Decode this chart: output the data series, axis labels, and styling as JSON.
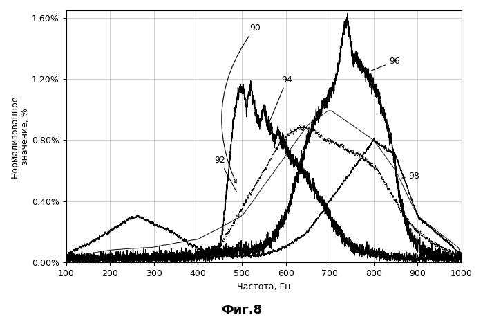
{
  "title": "",
  "xlabel": "Частота, Гц",
  "ylabel": "Нормализованное\nзначение, %",
  "fig_label": "Фиг.8",
  "xlim": [
    100,
    1000
  ],
  "ylim": [
    0.0,
    0.0165
  ],
  "yticks": [
    0.0,
    0.004,
    0.008,
    0.012,
    0.016
  ],
  "ytick_labels": [
    "0.00%",
    "0.40%",
    "0.80%",
    "1.20%",
    "1.60%"
  ],
  "xticks": [
    100,
    200,
    300,
    400,
    500,
    600,
    700,
    800,
    900,
    1000
  ],
  "background_color": "#ffffff",
  "line_color": "#000000"
}
